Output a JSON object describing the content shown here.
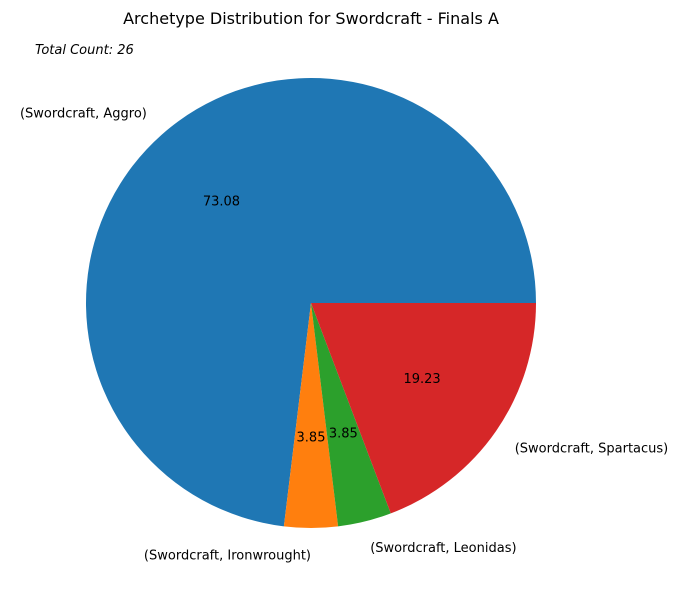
{
  "chart_data": {
    "type": "pie",
    "title": "Archetype Distribution for Swordcraft - Finals A",
    "annotation": "Total Count: 26",
    "start_angle_deg": 0,
    "direction": "counterclockwise",
    "slices": [
      {
        "label": "(Swordcraft, Aggro)",
        "value": 19,
        "pct_label": "73.08",
        "color": "#1f77b4"
      },
      {
        "label": "(Swordcraft, Ironwrought)",
        "value": 1,
        "pct_label": "3.85",
        "color": "#ff7f0e"
      },
      {
        "label": "(Swordcraft, Leonidas)",
        "value": 1,
        "pct_label": "3.85",
        "color": "#2ca02c"
      },
      {
        "label": "(Swordcraft, Spartacus)",
        "value": 5,
        "pct_label": "19.23",
        "color": "#d62728"
      }
    ]
  }
}
